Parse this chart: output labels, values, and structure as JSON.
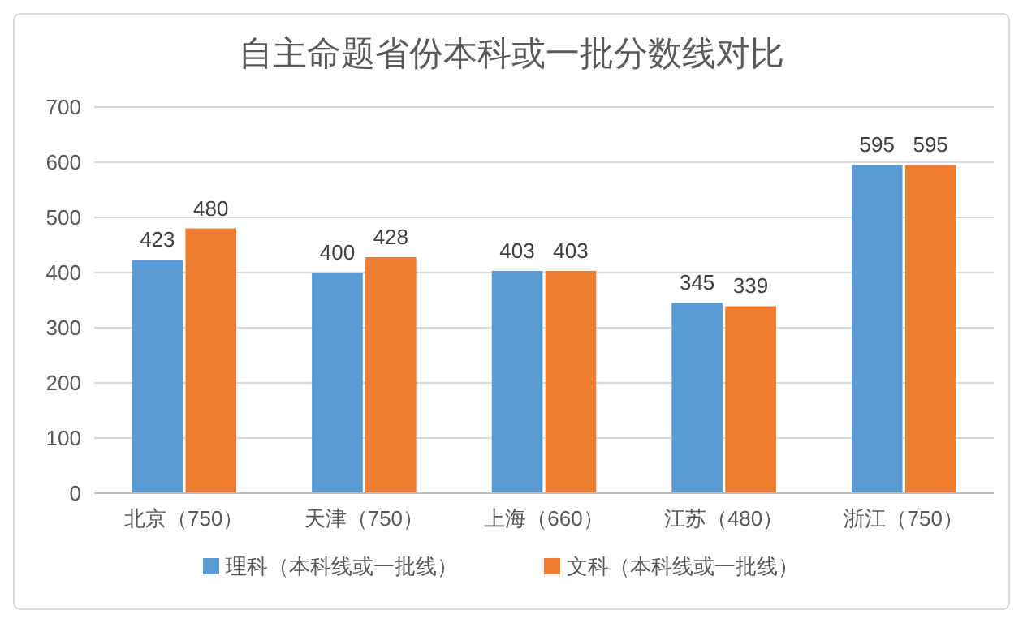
{
  "chart_data": {
    "type": "bar",
    "title": "自主命题省份本科或一批分数线对比",
    "categories": [
      "北京（750）",
      "天津（750）",
      "上海（660）",
      "江苏（480）",
      "浙江（750）"
    ],
    "series": [
      {
        "name": "理科（本科线或一批线）",
        "color": "#5b9bd5",
        "values": [
          423,
          400,
          403,
          345,
          595
        ]
      },
      {
        "name": "文科（本科线或一批线）",
        "color": "#ed7d31",
        "values": [
          480,
          428,
          403,
          339,
          595
        ]
      }
    ],
    "ylim": [
      0,
      700
    ],
    "yticks": [
      0,
      100,
      200,
      300,
      400,
      500,
      600,
      700
    ],
    "grid": "y",
    "legend": "bottom",
    "data_labels": true
  }
}
